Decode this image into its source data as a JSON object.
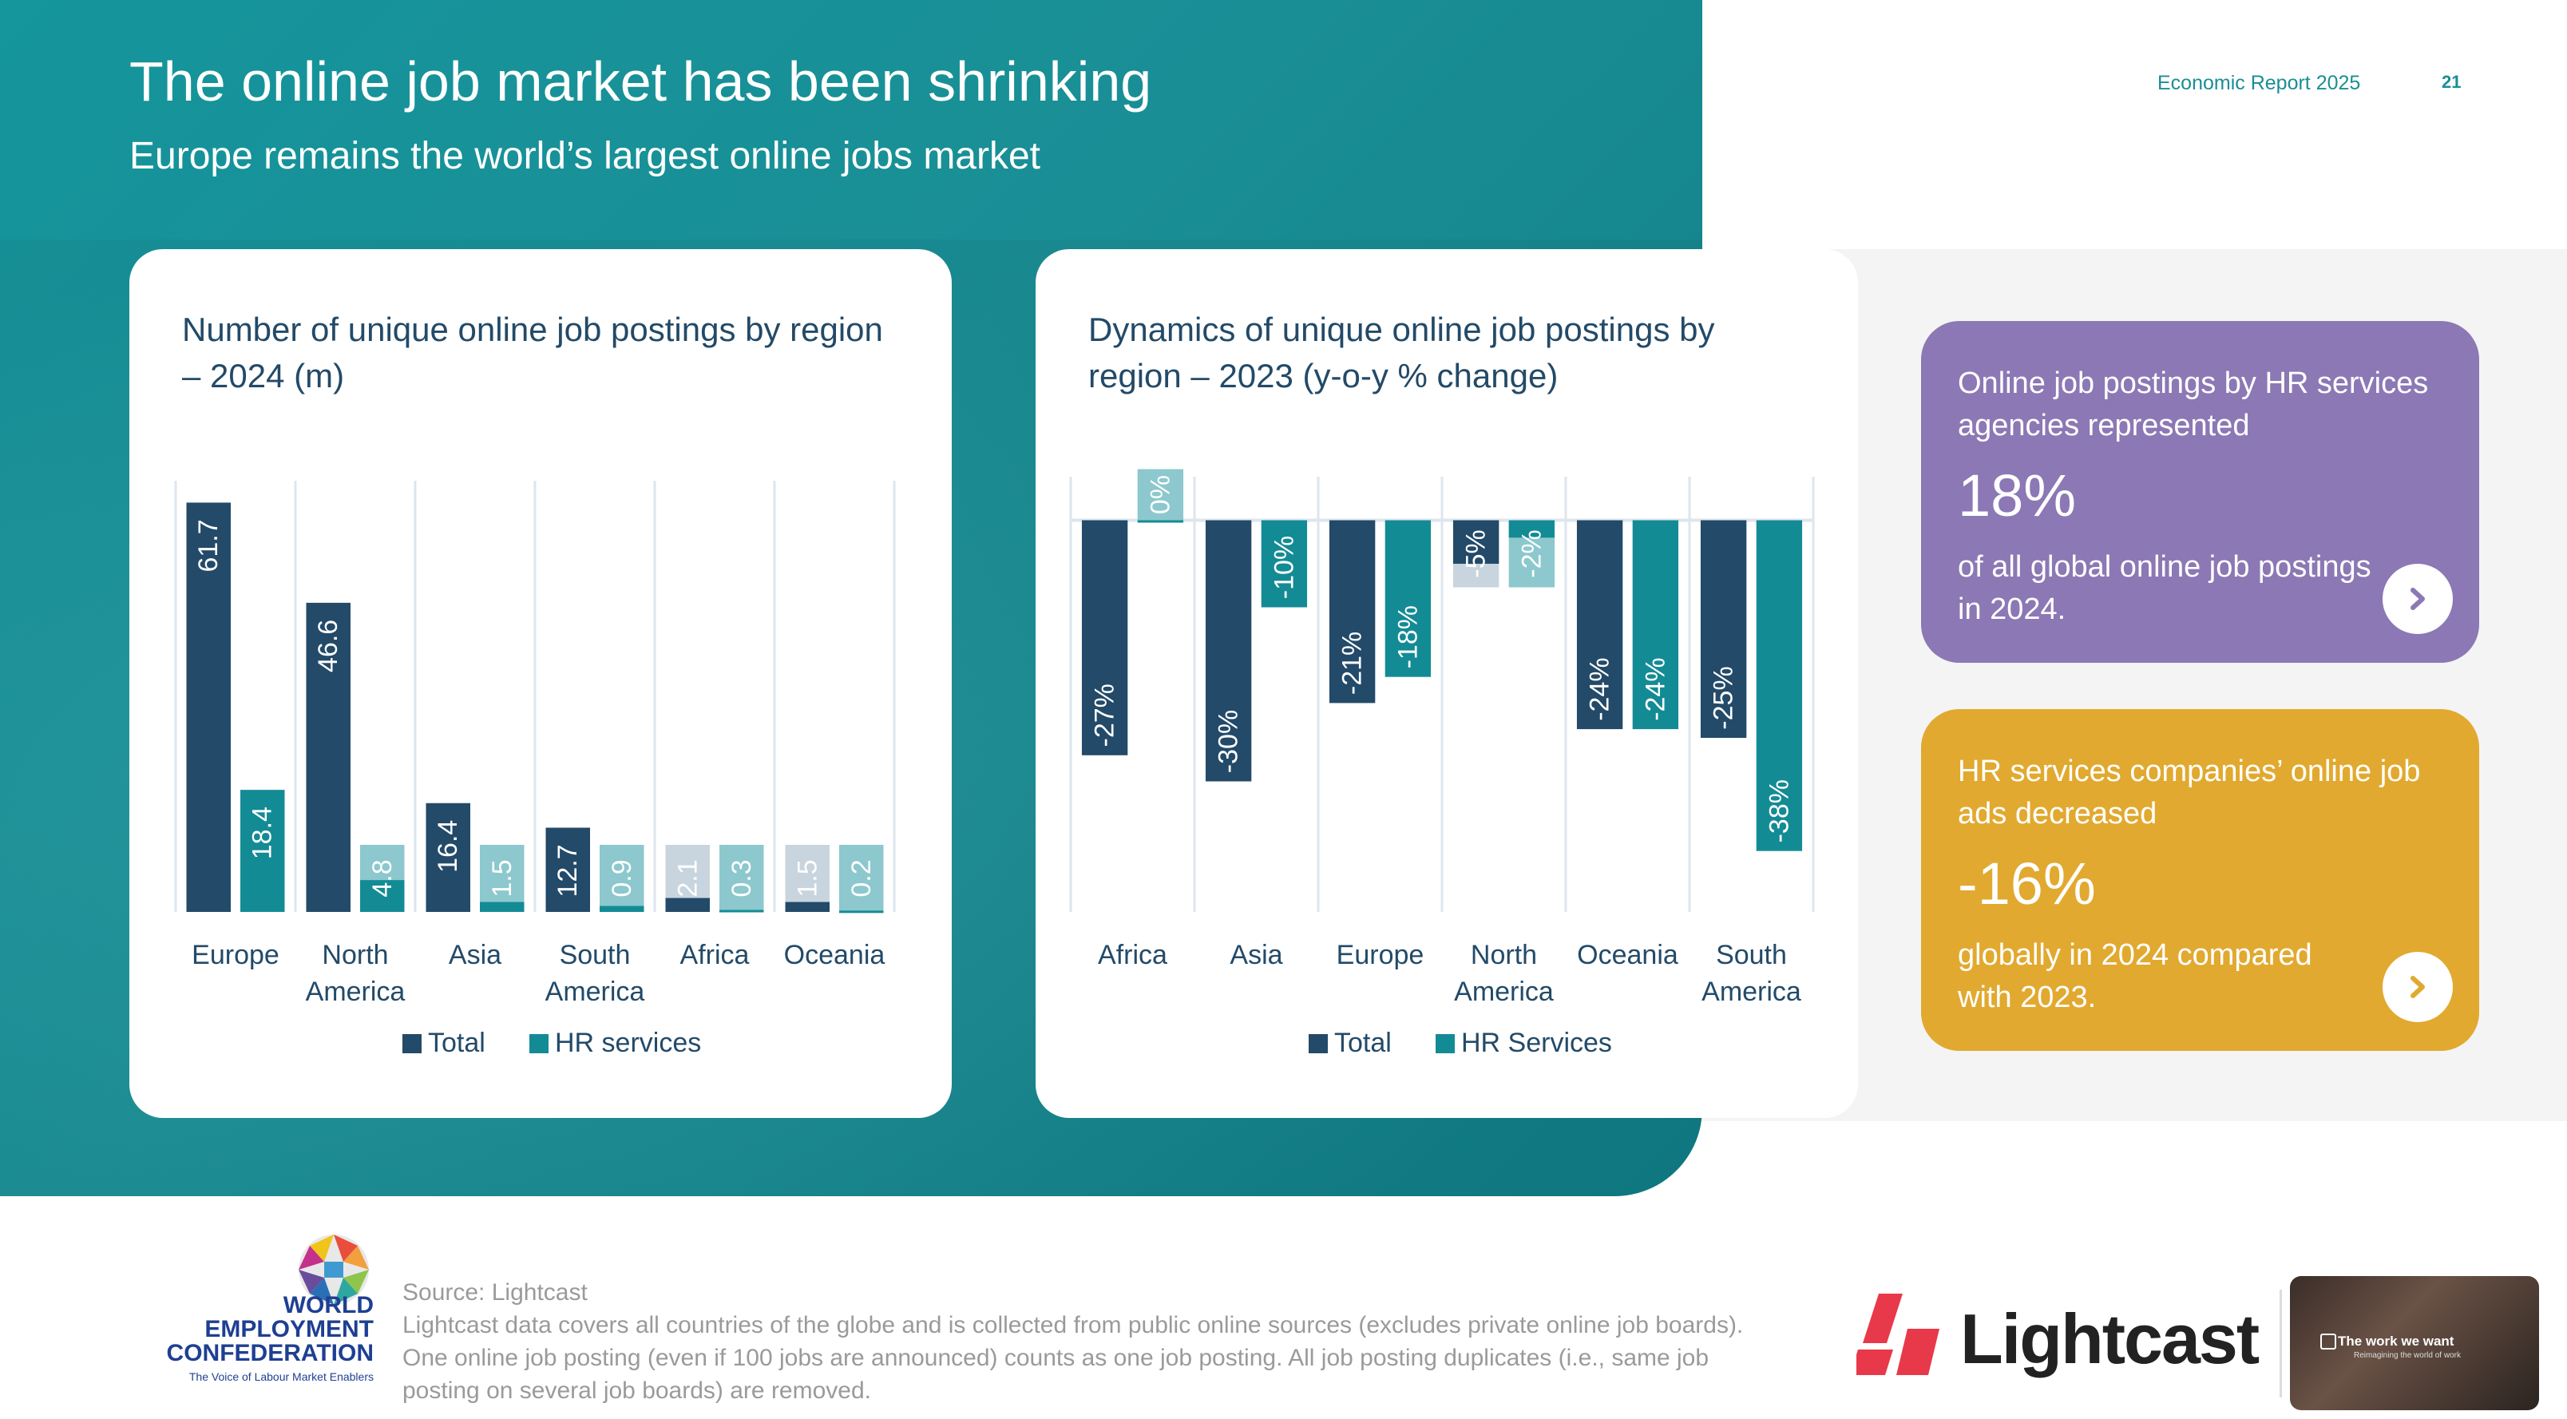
{
  "header": {
    "title": "The online job market has been shrinking",
    "subtitle": "Europe remains the world’s largest online jobs market",
    "report": "Economic Report 2025",
    "page_number": "21"
  },
  "colors": {
    "total": "#234a68",
    "hr": "#138b95",
    "hr_light": "#8cc8cd",
    "total_light": "#c8d5df",
    "purple": "#8b78b4",
    "gold": "#e1a92f",
    "teal": "#1a8e95"
  },
  "chart_data": [
    {
      "type": "bar",
      "title": "Number of unique online job postings by region – 2024 (m)",
      "categories": [
        "Europe",
        "North America",
        "Asia",
        "South America",
        "Africa",
        "Oceania"
      ],
      "category_lines": [
        [
          "Europe"
        ],
        [
          "North",
          "America"
        ],
        [
          "Asia"
        ],
        [
          "South",
          "America"
        ],
        [
          "Africa"
        ],
        [
          "Oceania"
        ]
      ],
      "series": [
        {
          "name": "Total",
          "values": [
            61.7,
            46.6,
            16.4,
            12.7,
            2.1,
            1.5
          ]
        },
        {
          "name": "HR services",
          "values": [
            18.4,
            4.8,
            1.5,
            0.9,
            0.3,
            0.2
          ]
        }
      ],
      "data_labels": [
        [
          "61.7",
          "46.6",
          "16.4",
          "12.7",
          "2.1",
          "1.5"
        ],
        [
          "18.4",
          "4.8",
          "1.5",
          "0.9",
          "0.3",
          "0.2"
        ]
      ],
      "ylim": [
        0,
        65
      ],
      "legend": [
        "Total",
        "HR services"
      ]
    },
    {
      "type": "bar",
      "title": "Dynamics of unique online job postings by region – 2023 (y-o-y % change)",
      "categories": [
        "Africa",
        "Asia",
        "Europe",
        "North America",
        "Oceania",
        "South America"
      ],
      "category_lines": [
        [
          "Africa"
        ],
        [
          "Asia"
        ],
        [
          "Europe"
        ],
        [
          "North",
          "America"
        ],
        [
          "Oceania"
        ],
        [
          "South",
          "America"
        ]
      ],
      "series": [
        {
          "name": "Total",
          "values": [
            -27,
            -30,
            -21,
            -5,
            -24,
            -25
          ]
        },
        {
          "name": "HR Services",
          "values": [
            0,
            -10,
            -18,
            -2,
            -24,
            -38
          ]
        }
      ],
      "data_labels": [
        [
          "-27%",
          "-30%",
          "-21%",
          "-5%",
          "-24%",
          "-25%"
        ],
        [
          "0%",
          "-10%",
          "-18%",
          "-2%",
          "-24%",
          "-38%"
        ]
      ],
      "ylim": [
        -45,
        5
      ],
      "legend": [
        "Total",
        "HR Services"
      ]
    }
  ],
  "info_boxes": [
    {
      "headline": "Online job postings by HR services agencies represented",
      "big": "18%",
      "tail": "of all global online job postings in 2024."
    },
    {
      "headline": "HR services companies’ online job ads decreased",
      "big": "-16%",
      "tail": "globally in 2024 compared with 2023."
    }
  ],
  "footer": {
    "source_title": "Source: Lightcast",
    "source_text": "Lightcast data covers all countries of the globe and is collected from public online sources (excludes private online job boards). One online job posting (even if 100 jobs are announced) counts as one job posting. All job posting duplicates (i.e., same job posting on several job boards) are removed.",
    "wec_lines": [
      "WORLD",
      "EMPLOYMENT",
      "CONFEDERATION"
    ],
    "wec_tagline": "The Voice of Labour Market Enablers",
    "lightcast": "Lightcast",
    "video_title": "The work we want",
    "video_subtitle": "Reimagining the world of work"
  }
}
